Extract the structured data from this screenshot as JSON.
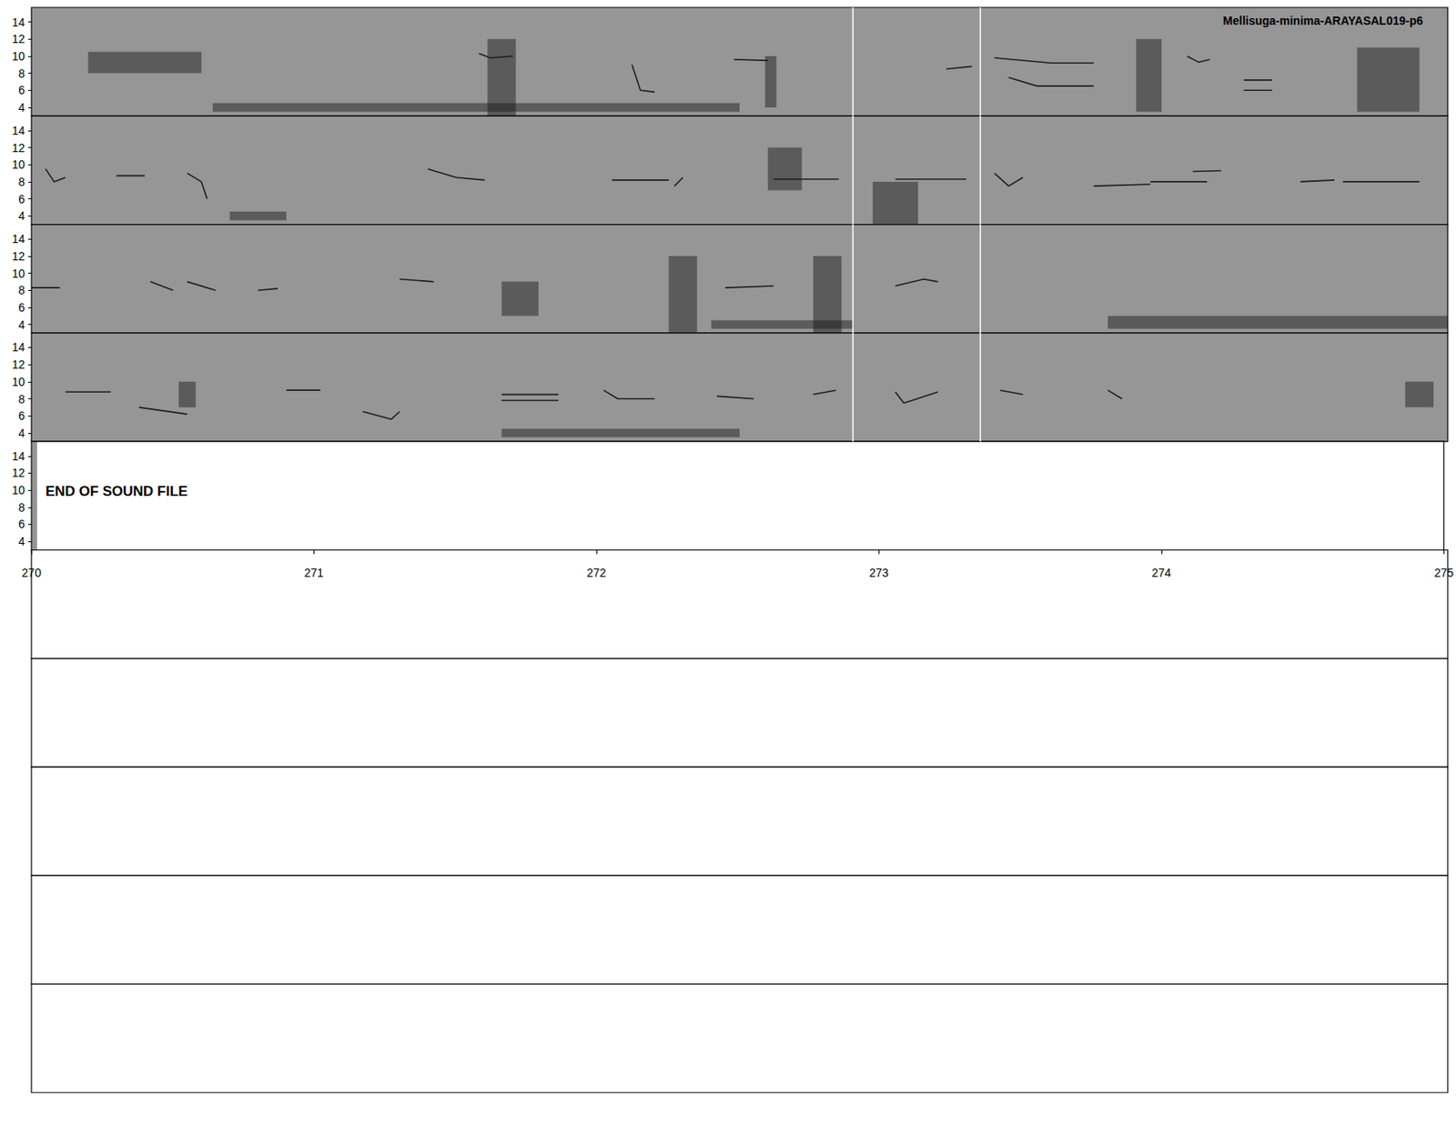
{
  "chart_data": [
    {
      "type": "spectrogram",
      "title": "Mellisuga-minima-ARAYASAL019-p6",
      "xlim": [
        250,
        255
      ],
      "ylim": [
        3,
        15.7
      ],
      "yticks": [
        4,
        6,
        8,
        10,
        12,
        14
      ],
      "tick_labels": "y",
      "dividers": [
        252.9,
        253.35
      ],
      "traces": [
        [
          [
            251.58,
            10.3
          ],
          [
            251.62,
            9.8
          ],
          [
            251.7,
            10.0
          ]
        ],
        [
          [
            252.12,
            9.0
          ],
          [
            252.15,
            6.0
          ],
          [
            252.2,
            5.8
          ]
        ],
        [
          [
            252.48,
            9.6
          ],
          [
            252.6,
            9.5
          ]
        ],
        [
          [
            253.23,
            8.5
          ],
          [
            253.32,
            8.8
          ]
        ],
        [
          [
            253.4,
            9.8
          ],
          [
            253.6,
            9.2
          ],
          [
            253.75,
            9.2
          ]
        ],
        [
          [
            253.45,
            7.5
          ],
          [
            253.55,
            6.5
          ],
          [
            253.75,
            6.5
          ]
        ],
        [
          [
            254.08,
            10.0
          ],
          [
            254.12,
            9.3
          ],
          [
            254.16,
            9.6
          ]
        ],
        [
          [
            254.28,
            7.2
          ],
          [
            254.38,
            7.2
          ]
        ],
        [
          [
            254.28,
            6.0
          ],
          [
            254.38,
            6.0
          ]
        ]
      ],
      "bursts": [
        [
          251.61,
          251.71,
          3,
          12
        ],
        [
          252.59,
          252.63,
          4,
          10
        ],
        [
          253.9,
          253.99,
          3.5,
          12
        ],
        [
          254.68,
          254.9,
          3.5,
          11
        ],
        [
          250.2,
          250.6,
          8,
          10.5
        ],
        [
          250.64,
          252.5,
          3.5,
          4.5
        ]
      ]
    },
    {
      "type": "spectrogram",
      "xlim": [
        255,
        260
      ],
      "ylim": [
        3,
        15.7
      ],
      "yticks": [
        4,
        6,
        8,
        10,
        12,
        14
      ],
      "tick_labels": "y",
      "dividers": [
        257.9,
        258.35
      ],
      "traces": [
        [
          [
            255.05,
            9.5
          ],
          [
            255.08,
            8.0
          ],
          [
            255.12,
            8.5
          ]
        ],
        [
          [
            255.3,
            8.7
          ],
          [
            255.4,
            8.7
          ]
        ],
        [
          [
            255.55,
            9.0
          ],
          [
            255.6,
            8.0
          ],
          [
            255.62,
            6.0
          ]
        ],
        [
          [
            256.4,
            9.5
          ],
          [
            256.5,
            8.5
          ],
          [
            256.6,
            8.2
          ]
        ],
        [
          [
            257.05,
            8.2
          ],
          [
            257.25,
            8.2
          ]
        ],
        [
          [
            257.27,
            7.5
          ],
          [
            257.3,
            8.5
          ]
        ],
        [
          [
            257.62,
            8.3
          ],
          [
            257.85,
            8.3
          ]
        ],
        [
          [
            258.05,
            8.3
          ],
          [
            258.3,
            8.3
          ]
        ],
        [
          [
            258.4,
            9.0
          ],
          [
            258.45,
            7.5
          ],
          [
            258.5,
            8.5
          ]
        ],
        [
          [
            258.75,
            7.5
          ],
          [
            258.95,
            7.7
          ]
        ],
        [
          [
            258.95,
            8.0
          ],
          [
            259.15,
            8.0
          ]
        ],
        [
          [
            259.1,
            9.2
          ],
          [
            259.2,
            9.3
          ]
        ],
        [
          [
            259.48,
            8.0
          ],
          [
            259.6,
            8.2
          ]
        ],
        [
          [
            259.63,
            8.0
          ],
          [
            259.9,
            8.0
          ]
        ]
      ],
      "bursts": [
        [
          257.97,
          258.13,
          3,
          8
        ],
        [
          257.6,
          257.72,
          7,
          12
        ],
        [
          255.7,
          255.9,
          3.5,
          4.5
        ]
      ]
    },
    {
      "type": "spectrogram",
      "xlim": [
        260,
        265
      ],
      "ylim": [
        3,
        15.7
      ],
      "yticks": [
        4,
        6,
        8,
        10,
        12,
        14
      ],
      "tick_labels": "y",
      "dividers": [
        262.9,
        263.35
      ],
      "traces": [
        [
          [
            260.0,
            8.3
          ],
          [
            260.1,
            8.3
          ]
        ],
        [
          [
            260.42,
            9.0
          ],
          [
            260.5,
            8.0
          ]
        ],
        [
          [
            260.55,
            9.0
          ],
          [
            260.65,
            8.0
          ]
        ],
        [
          [
            260.8,
            8.0
          ],
          [
            260.87,
            8.2
          ]
        ],
        [
          [
            261.3,
            9.3
          ],
          [
            261.42,
            9.0
          ]
        ],
        [
          [
            262.45,
            8.3
          ],
          [
            262.62,
            8.5
          ]
        ],
        [
          [
            263.05,
            8.5
          ],
          [
            263.15,
            9.3
          ],
          [
            263.2,
            9.0
          ]
        ]
      ],
      "bursts": [
        [
          262.25,
          262.35,
          3,
          12
        ],
        [
          262.76,
          262.86,
          3,
          12
        ],
        [
          262.4,
          262.9,
          3.5,
          4.5
        ],
        [
          263.8,
          265,
          3.5,
          5
        ],
        [
          261.66,
          261.79,
          5,
          9
        ]
      ]
    },
    {
      "type": "spectrogram",
      "xlim": [
        265,
        270
      ],
      "ylim": [
        3,
        15.7
      ],
      "yticks": [
        4,
        6,
        8,
        10,
        12,
        14
      ],
      "tick_labels": "y",
      "dividers": [
        267.9,
        268.35
      ],
      "traces": [
        [
          [
            265.12,
            8.8
          ],
          [
            265.28,
            8.8
          ]
        ],
        [
          [
            265.38,
            7.0
          ],
          [
            265.55,
            6.2
          ]
        ],
        [
          [
            265.9,
            9.0
          ],
          [
            266.02,
            9.0
          ]
        ],
        [
          [
            266.17,
            6.5
          ],
          [
            266.27,
            5.6
          ],
          [
            266.3,
            6.5
          ]
        ],
        [
          [
            266.66,
            8.5
          ],
          [
            266.86,
            8.5
          ]
        ],
        [
          [
            266.66,
            7.8
          ],
          [
            266.86,
            7.8
          ]
        ],
        [
          [
            267.02,
            9.0
          ],
          [
            267.07,
            8.0
          ],
          [
            267.2,
            8.0
          ]
        ],
        [
          [
            267.42,
            8.3
          ],
          [
            267.55,
            8.0
          ]
        ],
        [
          [
            267.76,
            8.5
          ],
          [
            267.84,
            9.0
          ]
        ],
        [
          [
            268.05,
            8.8
          ],
          [
            268.08,
            7.5
          ],
          [
            268.2,
            8.8
          ]
        ],
        [
          [
            268.42,
            9.0
          ],
          [
            268.5,
            8.5
          ]
        ],
        [
          [
            268.8,
            9.0
          ],
          [
            268.85,
            8.0
          ]
        ]
      ],
      "bursts": [
        [
          269.85,
          269.95,
          7,
          10
        ],
        [
          265.52,
          265.58,
          7,
          10
        ],
        [
          266.66,
          267.5,
          3.5,
          4.5
        ]
      ]
    },
    {
      "type": "spectrogram",
      "annotation": "END OF SOUND FILE",
      "xlim": [
        270,
        275
      ],
      "ylim": [
        3,
        15.7
      ],
      "yticks": [
        4,
        6,
        8,
        10,
        12,
        14
      ],
      "xticks": [
        270,
        271,
        272,
        273,
        274,
        275
      ],
      "tick_labels": true,
      "dividers": [],
      "traces": [],
      "bursts": [
        [
          270.0,
          270.02,
          3,
          15.7
        ]
      ]
    }
  ]
}
